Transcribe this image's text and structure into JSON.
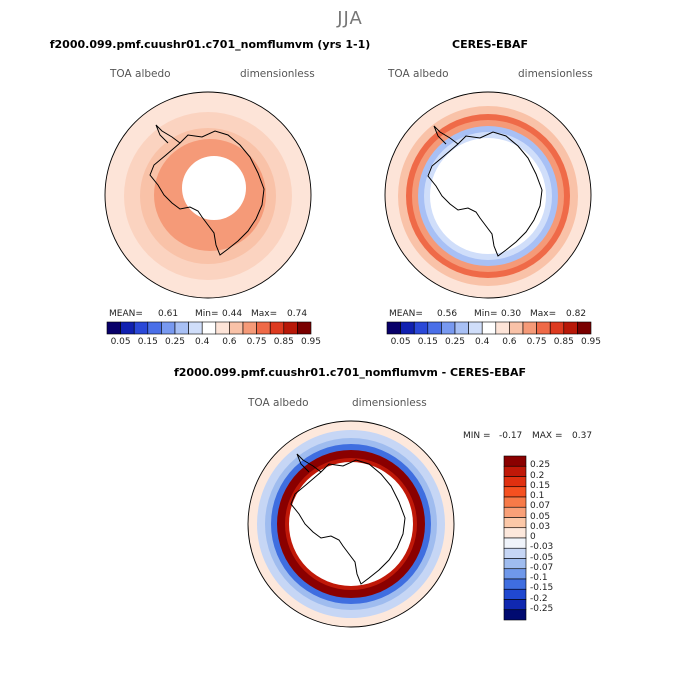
{
  "season": "JJA",
  "panels": [
    {
      "title": "f2000.099.pmf.cuushr01.c701_nomflumvm (yrs 1-1)",
      "variable": "TOA albedo",
      "units": "dimensionless",
      "mean_label": "MEAN=",
      "mean": "0.61",
      "min_label": "Min=",
      "min": "0.44",
      "max_label": "Max=",
      "max": "0.74"
    },
    {
      "title": "CERES-EBAF",
      "variable": "TOA albedo",
      "units": "dimensionless",
      "mean_label": "MEAN=",
      "mean": "0.56",
      "min_label": "Min=",
      "min": "0.30",
      "max_label": "Max=",
      "max": "0.82"
    }
  ],
  "abs_colorbar": {
    "ticks": [
      "0.05",
      "0.15",
      "0.25",
      "0.4",
      "0.6",
      "0.75",
      "0.85",
      "0.95"
    ],
    "colors": [
      "#08006a",
      "#1020b0",
      "#2a48d8",
      "#4a6fe8",
      "#7899f0",
      "#a8c0f5",
      "#d0defa",
      "#ffffff",
      "#fde4d8",
      "#f9c2a8",
      "#f59a78",
      "#ef6a48",
      "#dd3a20",
      "#b81808",
      "#7a0000"
    ]
  },
  "diff_panel": {
    "title": "f2000.099.pmf.cuushr01.c701_nomflumvm - CERES-EBAF",
    "variable": "TOA albedo",
    "units": "dimensionless",
    "min_label": "MIN =",
    "min": "-0.17",
    "max_label": "MAX =",
    "max": "0.37"
  },
  "diff_colorbar": {
    "labels": [
      "0.25",
      "0.2",
      "0.15",
      "0.1",
      "0.07",
      "0.05",
      "0.03",
      "0",
      "-0.03",
      "-0.05",
      "-0.07",
      "-0.1",
      "-0.15",
      "-0.2",
      "-0.25"
    ],
    "colors": [
      "#8a0000",
      "#c01808",
      "#e03010",
      "#f55020",
      "#f77a48",
      "#f9a078",
      "#fcc8a8",
      "#fde8dc",
      "#f0f4fb",
      "#c6d6f5",
      "#9fbcef",
      "#6f98ea",
      "#3f6ee0",
      "#2048d0",
      "#1028b0",
      "#000a70"
    ]
  },
  "colors": {
    "coast": "#000000",
    "panel_text": "#555555"
  }
}
